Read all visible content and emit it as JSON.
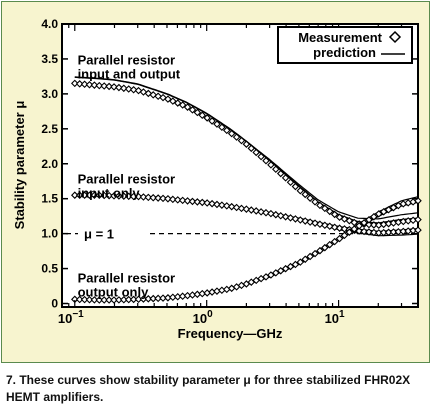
{
  "chart_data": {
    "type": "line",
    "xscale": "log",
    "xlim": [
      0.08,
      40
    ],
    "ylim": [
      -0.05,
      4.0
    ],
    "xlabel": "Frequency—GHz",
    "ylabel": "Stability parameter μ",
    "xticks": [
      {
        "value": 0.1,
        "base": "10",
        "exp": "−1"
      },
      {
        "value": 1,
        "base": "10",
        "exp": "0"
      },
      {
        "value": 10,
        "base": "10",
        "exp": "1"
      }
    ],
    "yticks": [
      {
        "value": 0,
        "label": "0"
      },
      {
        "value": 0.5,
        "label": "0.5"
      },
      {
        "value": 1.0,
        "label": "1.0"
      },
      {
        "value": 1.5,
        "label": "1.5"
      },
      {
        "value": 2.0,
        "label": "2.0"
      },
      {
        "value": 2.5,
        "label": "2.5"
      },
      {
        "value": 3.0,
        "label": "3.0"
      },
      {
        "value": 3.5,
        "label": "3.5"
      },
      {
        "value": 4.0,
        "label": "4.0"
      }
    ],
    "reference_line": {
      "y": 1.0,
      "label": "μ = 1"
    },
    "legend": {
      "position": "top-right",
      "entries": [
        {
          "label": "Measurement",
          "marker": "diamond"
        },
        {
          "label": "prediction",
          "marker": "line"
        }
      ]
    },
    "annotations": [
      {
        "lines": [
          "Parallel resistor",
          "input and output"
        ],
        "x": 0.105,
        "y": 3.42
      },
      {
        "lines": [
          "Parallel resistor",
          "input only"
        ],
        "x": 0.105,
        "y": 1.72
      },
      {
        "lines": [
          "Parallel resistor",
          "output only"
        ],
        "x": 0.105,
        "y": 0.3
      }
    ],
    "series": [
      {
        "name": "Parallel resistor input and output",
        "x": [
          0.1,
          0.15,
          0.2,
          0.3,
          0.5,
          0.7,
          1,
          1.5,
          2,
          3,
          5,
          7,
          10,
          14,
          20,
          30,
          40
        ],
        "prediction": [
          3.24,
          3.22,
          3.2,
          3.14,
          3.0,
          2.88,
          2.72,
          2.5,
          2.32,
          2.05,
          1.68,
          1.45,
          1.27,
          1.17,
          1.15,
          1.2,
          1.22
        ],
        "measurement": [
          3.15,
          3.12,
          3.1,
          3.05,
          2.93,
          2.82,
          2.66,
          2.45,
          2.28,
          2.0,
          1.63,
          1.42,
          1.24,
          1.14,
          1.12,
          1.17,
          1.2
        ]
      },
      {
        "name": "Parallel resistor input only",
        "x": [
          0.1,
          0.15,
          0.2,
          0.3,
          0.5,
          0.7,
          1,
          1.5,
          2,
          3,
          5,
          7,
          10,
          14,
          20,
          30,
          40
        ],
        "prediction": [
          1.56,
          1.56,
          1.55,
          1.54,
          1.51,
          1.48,
          1.45,
          1.4,
          1.36,
          1.3,
          1.22,
          1.16,
          1.1,
          1.06,
          1.03,
          1.05,
          1.07
        ],
        "measurement": [
          1.55,
          1.55,
          1.54,
          1.53,
          1.5,
          1.47,
          1.44,
          1.39,
          1.35,
          1.29,
          1.2,
          1.14,
          1.08,
          1.04,
          1.01,
          1.03,
          1.05
        ]
      },
      {
        "name": "Parallel resistor output only",
        "x": [
          0.1,
          0.15,
          0.2,
          0.3,
          0.5,
          0.7,
          1,
          1.5,
          2,
          3,
          5,
          7,
          10,
          14,
          20,
          30,
          40
        ],
        "prediction": [
          0.05,
          0.05,
          0.04,
          0.05,
          0.07,
          0.1,
          0.14,
          0.2,
          0.27,
          0.38,
          0.56,
          0.72,
          0.9,
          1.08,
          1.25,
          1.4,
          1.45
        ],
        "measurement": [
          0.06,
          0.05,
          0.05,
          0.06,
          0.08,
          0.11,
          0.15,
          0.21,
          0.28,
          0.4,
          0.58,
          0.74,
          0.92,
          1.1,
          1.28,
          1.42,
          1.47
        ]
      }
    ]
  },
  "caption": "7. These curves show stability parameter μ for three stabilized FHR02X HEMT amplifiers."
}
